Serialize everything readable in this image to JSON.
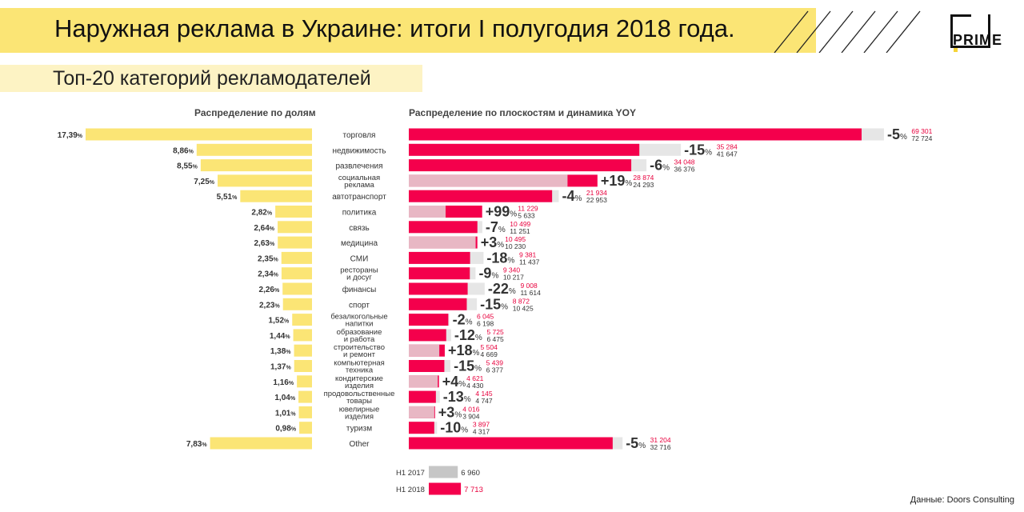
{
  "header": {
    "title": "Наружная реклама в Украине: итоги I полугодия 2018 года.",
    "subtitle": "Топ-20 категорий рекламодателей",
    "logo": "PRIME"
  },
  "left_heading": "Распределение по долям",
  "right_heading": "Распределение по плоскостям и динамика YOY",
  "source": "Данные: Doors Consulting",
  "colors": {
    "share": "#fbe575",
    "h2018": "#f4004c",
    "h2017": "#e6e6e6",
    "growth_overlay": "#e8b7c4",
    "pct_label_red": "#e8003d"
  },
  "chart_data": [
    {
      "type": "bar",
      "orientation": "horizontal",
      "title": "Распределение по долям",
      "categories": [
        "торговля",
        "недвижимость",
        "развлечения",
        "социальная реклама",
        "автотранспорт",
        "политика",
        "связь",
        "медицина",
        "СМИ",
        "рестораны и досуг",
        "финансы",
        "спорт",
        "безалкогольные напитки",
        "образование и работа",
        "строительство и ремонт",
        "компьютерная техника",
        "кондитерские изделия",
        "продовольственные товары",
        "ювелирные изделия",
        "туризм",
        "Other"
      ],
      "category_lines": [
        [
          "торговля"
        ],
        [
          "недвижимость"
        ],
        [
          "развлечения"
        ],
        [
          "социальная",
          "реклама"
        ],
        [
          "автотранспорт"
        ],
        [
          "политика"
        ],
        [
          "связь"
        ],
        [
          "медицина"
        ],
        [
          "СМИ"
        ],
        [
          "рестораны",
          "и досуг"
        ],
        [
          "финансы"
        ],
        [
          "спорт"
        ],
        [
          "безалкогольные",
          "напитки"
        ],
        [
          "образование",
          "и работа"
        ],
        [
          "строительство",
          "и ремонт"
        ],
        [
          "компьютерная",
          "техника"
        ],
        [
          "кондитерские",
          "изделия"
        ],
        [
          "продовольственные",
          "товары"
        ],
        [
          "ювелирные",
          "изделия"
        ],
        [
          "туризм"
        ],
        [
          "Other"
        ]
      ],
      "values": [
        17.39,
        8.86,
        8.55,
        7.25,
        5.51,
        2.82,
        2.64,
        2.63,
        2.35,
        2.34,
        2.26,
        2.23,
        1.52,
        1.44,
        1.38,
        1.37,
        1.16,
        1.04,
        1.01,
        0.98,
        7.83
      ],
      "value_labels": [
        "17,39",
        "8,86",
        "8,55",
        "7,25",
        "5,51",
        "2,82",
        "2,64",
        "2,63",
        "2,35",
        "2,34",
        "2,26",
        "2,23",
        "1,52",
        "1,44",
        "1,38",
        "1,37",
        "1,16",
        "1,04",
        "1,01",
        "0,98",
        "7,83"
      ],
      "unit": "%"
    },
    {
      "type": "bar",
      "orientation": "horizontal",
      "title": "Распределение по плоскостям и динамика YOY",
      "categories": [
        "торговля",
        "недвижимость",
        "развлечения",
        "социальная реклама",
        "автотранспорт",
        "политика",
        "связь",
        "медицина",
        "СМИ",
        "рестораны и досуг",
        "финансы",
        "спорт",
        "безалкогольные напитки",
        "образование и работа",
        "строительство и ремонт",
        "компьютерная техника",
        "кондитерские изделия",
        "продовольственные товары",
        "ювелирные изделия",
        "туризм",
        "Other"
      ],
      "series": [
        {
          "name": "H1 2018",
          "values": [
            69301,
            35284,
            34048,
            28874,
            21934,
            11229,
            10499,
            10495,
            9381,
            9340,
            9008,
            8872,
            6045,
            5725,
            5504,
            5439,
            4621,
            4145,
            4016,
            3897,
            31204
          ],
          "labels": [
            "69 301",
            "35 284",
            "34 048",
            "28 874",
            "21 934",
            "11 229",
            "10 499",
            "10 495",
            "9 381",
            "9 340",
            "9 008",
            "8 872",
            "6 045",
            "5 725",
            "5 504",
            "5 439",
            "4 621",
            "4 145",
            "4 016",
            "3 897",
            "31 204"
          ]
        },
        {
          "name": "H1 2017",
          "values": [
            72724,
            41647,
            36376,
            24293,
            22953,
            5633,
            11251,
            10230,
            11437,
            10217,
            11614,
            10425,
            6198,
            6475,
            4669,
            6377,
            4430,
            4747,
            3904,
            4317,
            32716
          ],
          "labels": [
            "72 724",
            "41 647",
            "36 376",
            "24 293",
            "22 953",
            "5 633",
            "11 251",
            "10 230",
            "11 437",
            "10 217",
            "11 614",
            "10 425",
            "6 198",
            "6 475",
            "4 669",
            "6 377",
            "4 430",
            "4 747",
            "3 904",
            "4 317",
            "32 716"
          ]
        }
      ],
      "yoy_percent": [
        "-5",
        "-15",
        "-6",
        "+19",
        "-4",
        "+99",
        "-7",
        "+3",
        "-18",
        "-9",
        "-22",
        "-15",
        "-2",
        "-12",
        "+18",
        "-15",
        "+4",
        "-13",
        "+3",
        "-10",
        "-5"
      ],
      "unit": "%"
    }
  ],
  "legend": [
    {
      "label": "H1 2017",
      "value": "6 960",
      "value_num": 6960,
      "color": "#c6c6c6"
    },
    {
      "label": "H1 2018",
      "value": "7 713",
      "value_num": 7713,
      "color": "#f4004c"
    }
  ]
}
